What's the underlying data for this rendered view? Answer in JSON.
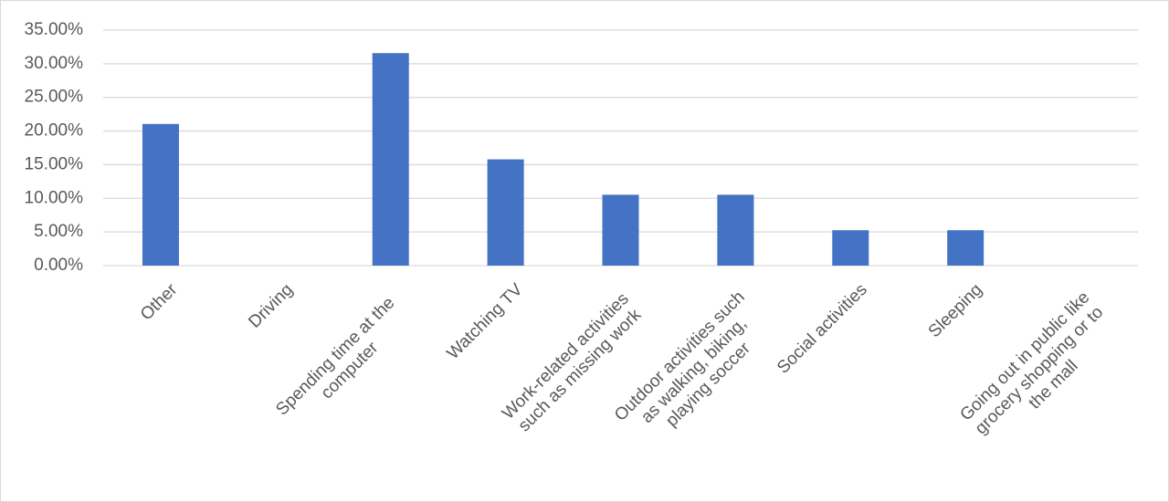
{
  "chart_data": {
    "type": "bar",
    "categories": [
      "Other",
      "Driving",
      "Spending time at the computer",
      "Watching TV",
      "Work-related activities such as missing work",
      "Outdoor activities such as walking, biking, playing soccer",
      "Social activities",
      "Sleeping",
      "Going out in public like grocery shopping or to the mall"
    ],
    "values": [
      21.05,
      0,
      31.58,
      15.79,
      10.53,
      10.53,
      5.26,
      5.26,
      0
    ],
    "color": "#4472c4",
    "ylim": [
      0,
      35
    ],
    "yticks": [
      {
        "value": 0,
        "label": "0.00%"
      },
      {
        "value": 5,
        "label": "5.00%"
      },
      {
        "value": 10,
        "label": "10.00%"
      },
      {
        "value": 15,
        "label": "15.00%"
      },
      {
        "value": 20,
        "label": "20.00%"
      },
      {
        "value": 25,
        "label": "25.00%"
      },
      {
        "value": 30,
        "label": "30.00%"
      },
      {
        "value": 35,
        "label": "35.00%"
      }
    ],
    "grid": true
  }
}
